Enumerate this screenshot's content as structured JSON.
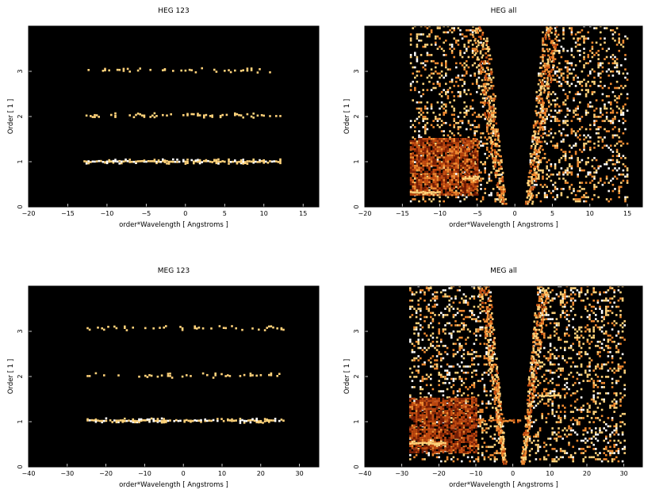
{
  "chart_data": [
    {
      "type": "heatmap",
      "title": "HEG 123",
      "xlabel": "order*Wavelength [ Angstroms ]",
      "ylabel": "Order [ 1 ]",
      "xlim": [
        -20,
        17
      ],
      "ylim": [
        0,
        4
      ],
      "xticks": [
        -20,
        -15,
        -10,
        -5,
        0,
        5,
        10,
        15
      ],
      "yticks": [
        0,
        1,
        2,
        3
      ],
      "background": "#000000",
      "colormap": [
        "#3a0a00",
        "#7a1f05",
        "#c24a10",
        "#f08a30",
        "#ffd27a",
        "#ffffff"
      ],
      "features": [
        {
          "kind": "band",
          "x": [
            -13,
            12
          ],
          "y": 0.98,
          "density": 0.95,
          "intensity": 0.95
        },
        {
          "kind": "band",
          "x": [
            -13,
            12
          ],
          "y": 2.0,
          "density": 0.35,
          "intensity": 0.9
        },
        {
          "kind": "band",
          "x": [
            -13,
            12
          ],
          "y": 3.0,
          "density": 0.22,
          "intensity": 0.9
        }
      ]
    },
    {
      "type": "heatmap",
      "title": "HEG all",
      "xlabel": "order*Wavelength [ Angstroms ]",
      "ylabel": "Order [ 1 ]",
      "xlim": [
        -20,
        17
      ],
      "ylim": [
        0,
        4
      ],
      "xticks": [
        -20,
        -15,
        -10,
        -5,
        0,
        5,
        10,
        15
      ],
      "yticks": [
        0,
        1,
        2,
        3
      ],
      "background": "#000000",
      "colormap": [
        "#3a0a00",
        "#7a1f05",
        "#c24a10",
        "#f08a30",
        "#ffd27a",
        "#ffffff"
      ],
      "features": [
        {
          "kind": "scatter",
          "x": [
            -14,
            15
          ],
          "y": [
            0.1,
            4
          ],
          "density": 0.45
        },
        {
          "kind": "vgap",
          "x": [
            -1.3,
            1.3
          ],
          "y": [
            0,
            4
          ],
          "wedge_halfwidth_at_top": 4
        },
        {
          "kind": "wedge",
          "side": "left",
          "x_edge_at_top": -4.2,
          "intensity": 0.8
        },
        {
          "kind": "wedge",
          "side": "right",
          "x_edge_at_top": 4.2,
          "intensity": 0.8
        },
        {
          "kind": "block",
          "x": [
            -14,
            -7.5
          ],
          "y": [
            0.25,
            1.5
          ],
          "density": 0.85,
          "intensity": 0.5
        },
        {
          "kind": "block",
          "x": [
            -7.3,
            -5
          ],
          "y": [
            0.25,
            1.5
          ],
          "density": 0.85,
          "intensity": 0.5
        },
        {
          "kind": "band",
          "x": [
            -14,
            -10
          ],
          "y": 0.3,
          "density": 1.0,
          "intensity": 0.9
        },
        {
          "kind": "band",
          "x": [
            -7,
            -5
          ],
          "y": 0.6,
          "density": 1.0,
          "intensity": 0.9
        }
      ]
    },
    {
      "type": "heatmap",
      "title": "MEG 123",
      "xlabel": "order*Wavelength [ Angstroms ]",
      "ylabel": "Order [ 1 ]",
      "xlim": [
        -40,
        35
      ],
      "ylim": [
        0,
        4
      ],
      "xticks": [
        -40,
        -30,
        -20,
        -10,
        0,
        10,
        20,
        30
      ],
      "yticks": [
        0,
        1,
        2,
        3
      ],
      "background": "#000000",
      "colormap": [
        "#3a0a00",
        "#7a1f05",
        "#c24a10",
        "#f08a30",
        "#ffd27a",
        "#ffffff"
      ],
      "features": [
        {
          "kind": "band",
          "x": [
            -25,
            26
          ],
          "y": 1.0,
          "density": 0.85,
          "intensity": 0.95
        },
        {
          "kind": "band",
          "x": [
            -25,
            26
          ],
          "y": 2.0,
          "density": 0.3,
          "intensity": 0.9
        },
        {
          "kind": "band",
          "x": [
            -25,
            26
          ],
          "y": 3.05,
          "density": 0.25,
          "intensity": 0.9
        }
      ]
    },
    {
      "type": "heatmap",
      "title": "MEG all",
      "xlabel": "order*Wavelength [ Angstroms ]",
      "ylabel": "Order [ 1 ]",
      "xlim": [
        -40,
        35
      ],
      "ylim": [
        0,
        4
      ],
      "xticks": [
        -40,
        -30,
        -20,
        -10,
        0,
        10,
        20,
        30
      ],
      "yticks": [
        0,
        1,
        2,
        3
      ],
      "background": "#000000",
      "colormap": [
        "#3a0a00",
        "#7a1f05",
        "#c24a10",
        "#f08a30",
        "#ffd27a",
        "#ffffff"
      ],
      "features": [
        {
          "kind": "scatter",
          "x": [
            -28,
            30
          ],
          "y": [
            0.1,
            4
          ],
          "density": 0.45
        },
        {
          "kind": "vgap",
          "x": [
            -2,
            2
          ],
          "y": [
            0,
            4
          ],
          "wedge_halfwidth_at_top": 7
        },
        {
          "kind": "wedge",
          "side": "left",
          "x_edge_at_top": -7,
          "intensity": 0.8
        },
        {
          "kind": "wedge",
          "side": "right",
          "x_edge_at_top": 7,
          "intensity": 0.8
        },
        {
          "kind": "block",
          "x": [
            -28,
            -10
          ],
          "y": [
            0.3,
            1.5
          ],
          "density": 0.8,
          "intensity": 0.45
        },
        {
          "kind": "band",
          "x": [
            -28,
            -18
          ],
          "y": 0.5,
          "density": 1.0,
          "intensity": 0.9
        },
        {
          "kind": "band",
          "x": [
            -10,
            2
          ],
          "y": 1.0,
          "density": 0.8,
          "intensity": 0.6
        },
        {
          "kind": "band",
          "x": [
            7,
            13
          ],
          "y": 1.55,
          "density": 1.0,
          "intensity": 0.9
        }
      ]
    }
  ]
}
